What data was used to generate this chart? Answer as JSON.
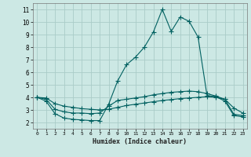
{
  "xlabel": "Humidex (Indice chaleur)",
  "bg_color": "#cce8e4",
  "grid_color": "#aaccc8",
  "line_color": "#006060",
  "xlim": [
    -0.5,
    23.5
  ],
  "ylim": [
    1.5,
    11.5
  ],
  "xticks": [
    0,
    1,
    2,
    3,
    4,
    5,
    6,
    7,
    8,
    9,
    10,
    11,
    12,
    13,
    14,
    15,
    16,
    17,
    18,
    19,
    20,
    21,
    22,
    23
  ],
  "yticks": [
    2,
    3,
    4,
    5,
    6,
    7,
    8,
    9,
    10,
    11
  ],
  "line1_x": [
    0,
    1,
    2,
    3,
    4,
    5,
    6,
    7,
    8,
    9,
    10,
    11,
    12,
    13,
    14,
    15,
    16,
    17,
    18,
    19,
    20,
    21,
    22,
    23
  ],
  "line1_y": [
    4.0,
    3.7,
    2.7,
    2.35,
    2.25,
    2.2,
    2.15,
    2.15,
    3.45,
    5.3,
    6.6,
    7.2,
    8.0,
    9.2,
    11.0,
    9.25,
    10.4,
    10.05,
    8.8,
    4.15,
    4.05,
    3.7,
    2.55,
    2.45
  ],
  "line2_x": [
    0,
    1,
    2,
    3,
    4,
    5,
    6,
    7,
    8,
    9,
    10,
    11,
    12,
    13,
    14,
    15,
    16,
    17,
    18,
    19,
    20,
    21,
    22,
    23
  ],
  "line2_y": [
    4.0,
    3.85,
    3.05,
    2.85,
    2.75,
    2.75,
    2.7,
    2.75,
    3.3,
    3.75,
    3.85,
    3.95,
    4.05,
    4.2,
    4.3,
    4.4,
    4.45,
    4.5,
    4.45,
    4.3,
    4.1,
    3.85,
    3.15,
    2.75
  ],
  "line3_x": [
    0,
    1,
    2,
    3,
    4,
    5,
    6,
    7,
    8,
    9,
    10,
    11,
    12,
    13,
    14,
    15,
    16,
    17,
    18,
    19,
    20,
    21,
    22,
    23
  ],
  "line3_y": [
    4.0,
    3.95,
    3.5,
    3.3,
    3.2,
    3.1,
    3.05,
    3.0,
    3.05,
    3.2,
    3.35,
    3.45,
    3.55,
    3.65,
    3.75,
    3.82,
    3.9,
    3.95,
    4.0,
    4.05,
    4.0,
    3.85,
    2.65,
    2.55
  ]
}
